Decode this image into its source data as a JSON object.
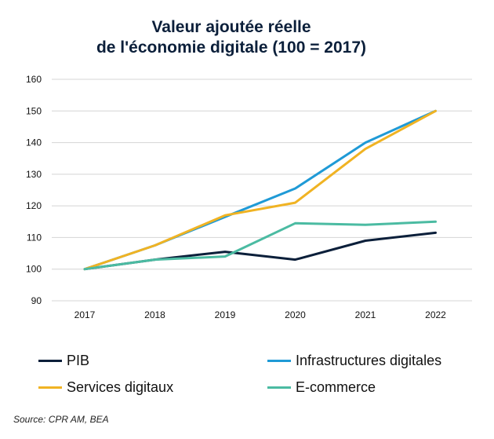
{
  "title_line1": "Valeur ajoutée réelle",
  "title_line2": "de l'économie digitale (100 = 2017)",
  "source": "Source: CPR AM, BEA",
  "chart_data": {
    "type": "line",
    "title": "Valeur ajoutée réelle de l'économie digitale (100 = 2017)",
    "x": [
      "2017",
      "2018",
      "2019",
      "2020",
      "2021",
      "2022"
    ],
    "ylim": [
      90,
      160
    ],
    "yticks": [
      90,
      100,
      110,
      120,
      130,
      140,
      150,
      160
    ],
    "grid": true,
    "legend_position": "bottom",
    "series": [
      {
        "name": "PIB",
        "color": "#0b1f3a",
        "values": [
          100,
          103,
          105.5,
          103,
          109,
          111.5
        ]
      },
      {
        "name": "Infrastructures digitales",
        "color": "#1f9ad6",
        "values": [
          100,
          107.5,
          116.5,
          125.5,
          140,
          150
        ]
      },
      {
        "name": "Services digitaux",
        "color": "#f0b323",
        "values": [
          100,
          107.5,
          117,
          121,
          138,
          150
        ]
      },
      {
        "name": "E-commerce",
        "color": "#4bbba2",
        "values": [
          100,
          103,
          104,
          114.5,
          114,
          115
        ]
      }
    ]
  }
}
